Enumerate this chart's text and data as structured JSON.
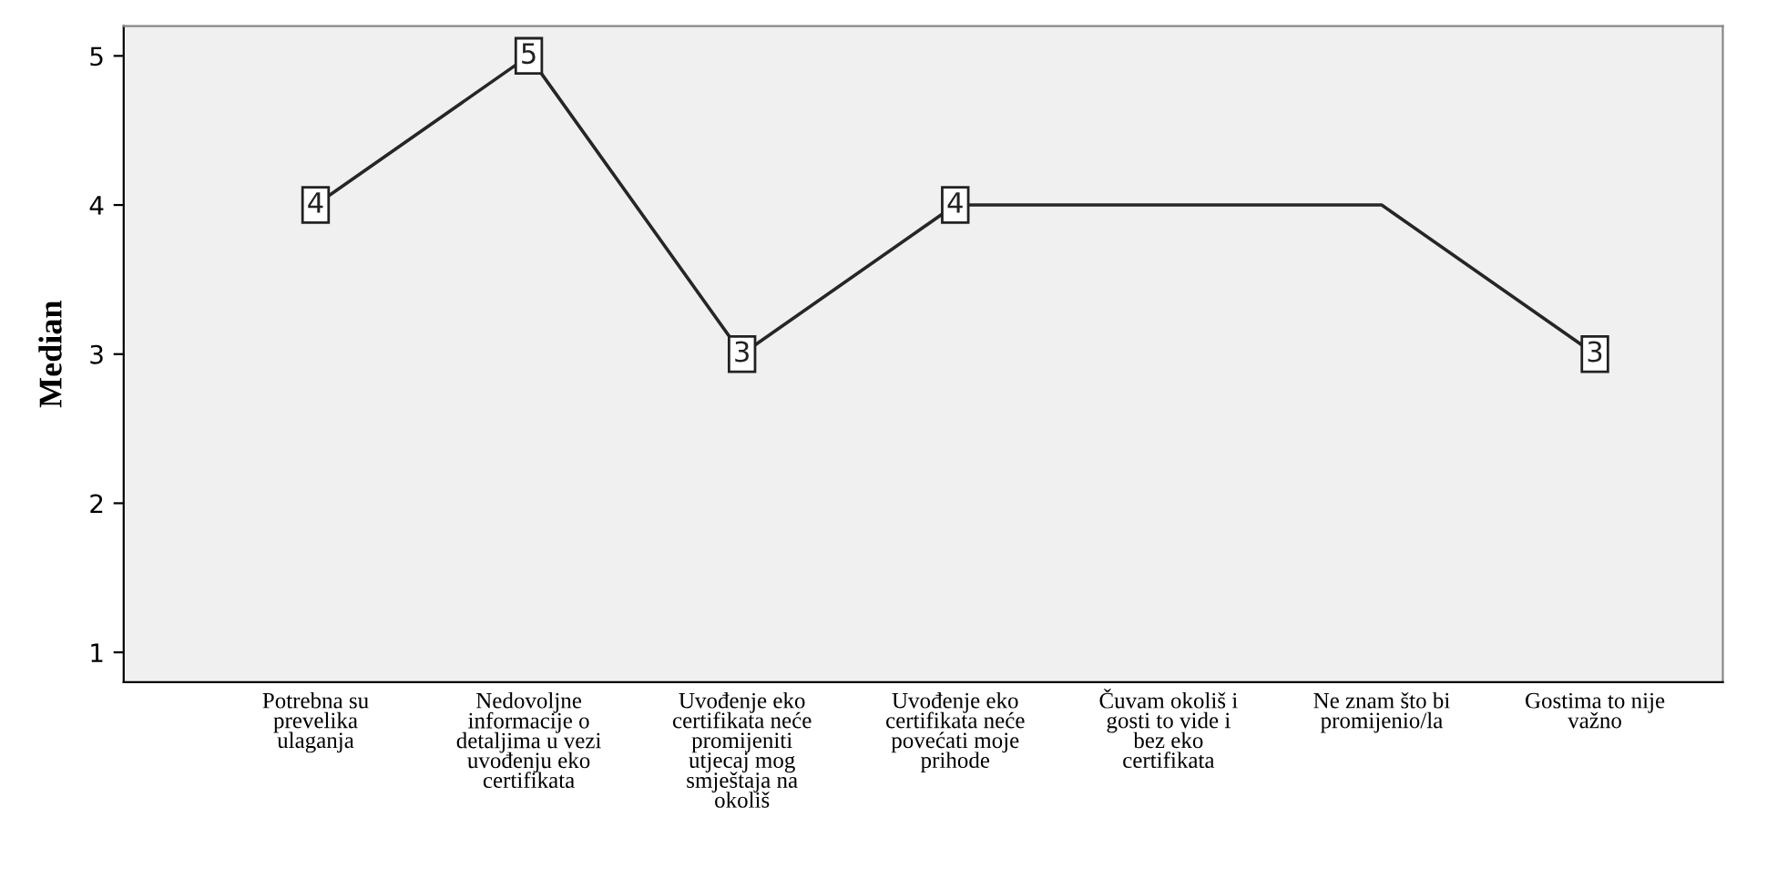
{
  "chart_data": {
    "type": "line",
    "ylabel": "Median",
    "categories": [
      "Potrebna su\nprevelika\nulaganja",
      "Nedovoljne\ninformacije o\ndetaljima u vezi\nuvođenju eko\ncertifikata",
      "Uvođenje eko\ncertifikata neće\npromijeniti\nutjecaj mog\nsmještaja na\nokoliš",
      "Uvođenje eko\ncertifikata neće\npovećati moje\nprihode",
      "Čuvam okoliš i\ngosti to vide i\nbez eko\ncertifikata",
      "Ne znam što bi\npromijenio/la",
      "Gostima to nije\nvažno"
    ],
    "series": [
      {
        "color": "#262626",
        "values": [
          4,
          5,
          3,
          4,
          4,
          4,
          3
        ],
        "value_labels": [
          "4",
          "5",
          "3",
          "4",
          null,
          null,
          "3"
        ]
      }
    ],
    "ylim": [
      0.8,
      5.2
    ],
    "yticks": [
      1,
      2,
      3,
      4,
      5
    ],
    "grid": false,
    "line_style": "solid"
  }
}
